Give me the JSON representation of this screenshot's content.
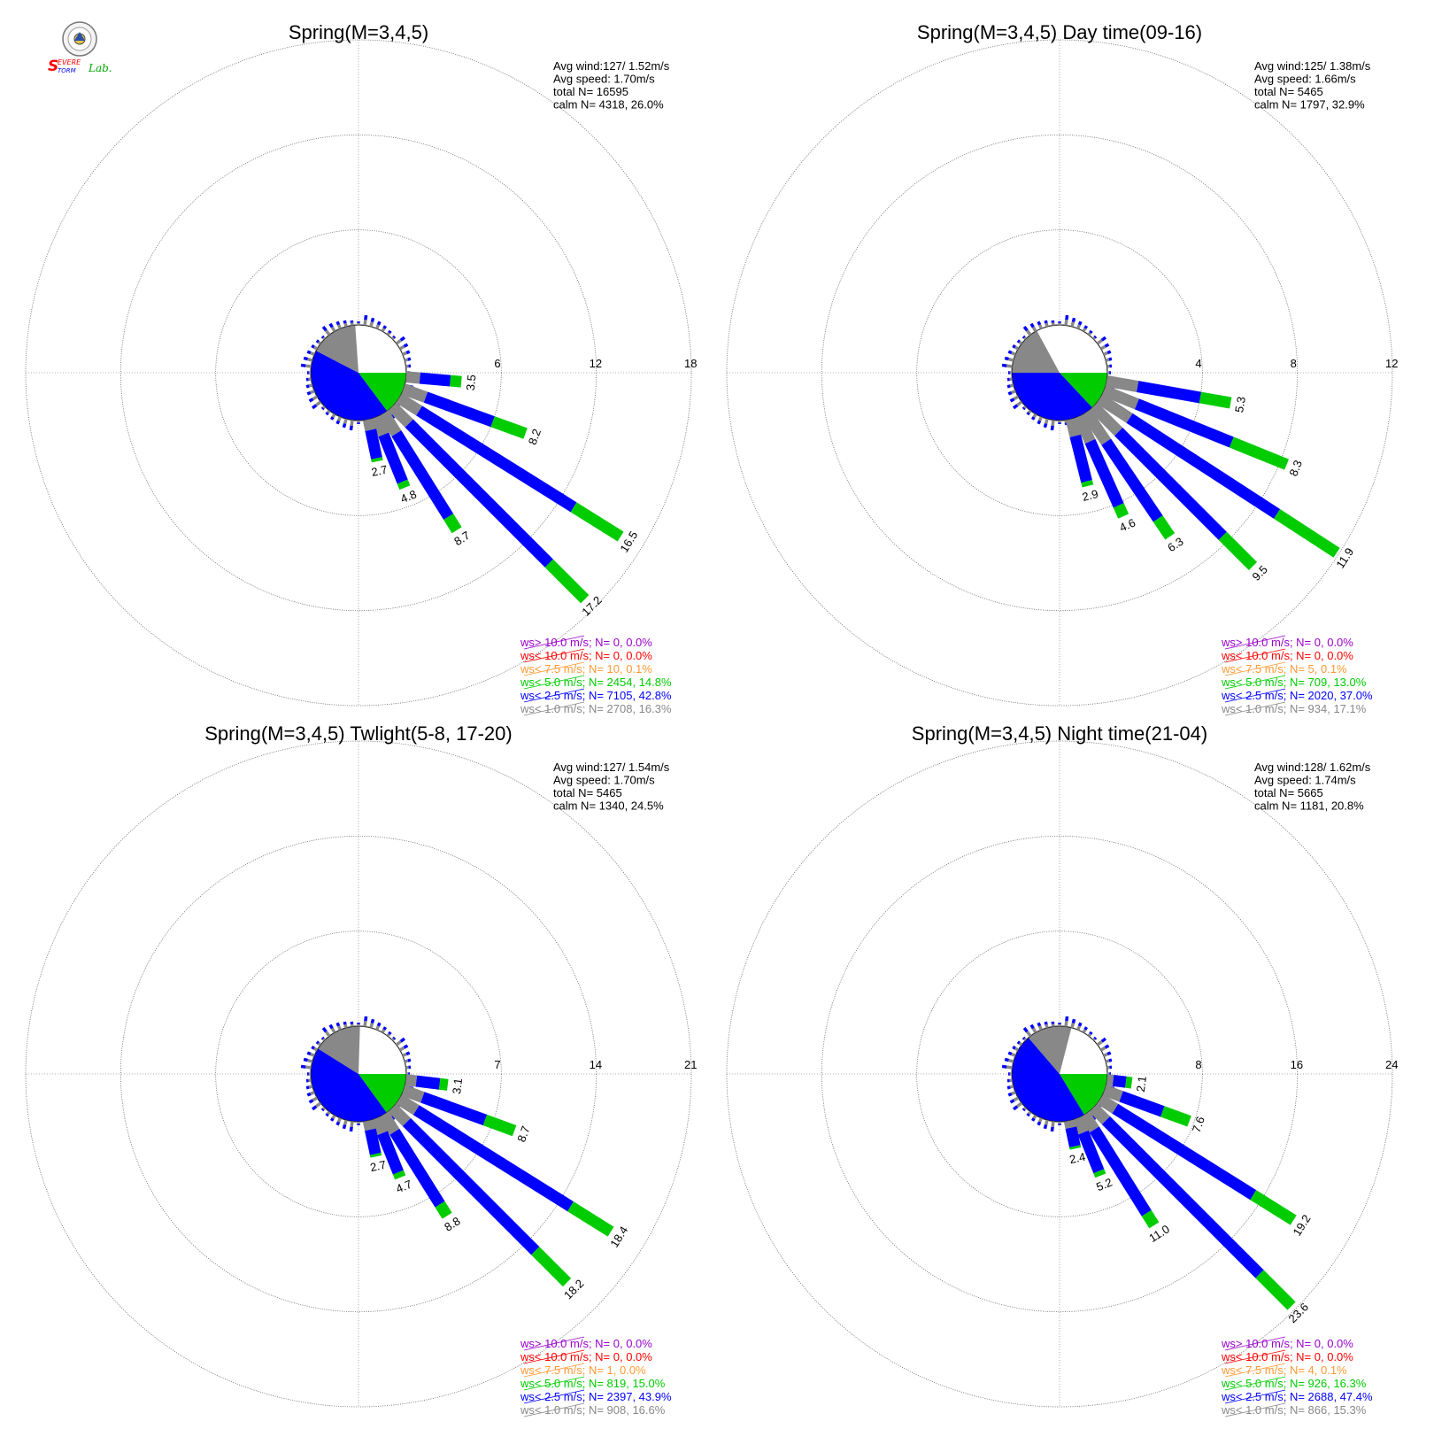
{
  "logo": {
    "text_s": "S",
    "text_evere": "EVERE",
    "text_torm": "TORM",
    "text_lab": "Lab.",
    "colors": [
      "#ff0000",
      "#0000ff",
      "#00aa00"
    ]
  },
  "legend_colors": {
    "gt10": "#9900cc",
    "lt10": "#ff0000",
    "lt75": "#ff9933",
    "lt5": "#00cc00",
    "lt25": "#0000ff",
    "lt1": "#888888"
  },
  "chart_data": [
    {
      "type": "wind-rose",
      "title": "Spring(M=3,4,5)",
      "stats": [
        "Avg wind:127/ 1.52m/s",
        "Avg speed: 1.70m/s",
        "total N=      16595",
        "calm N=   4318,  26.0%"
      ],
      "rings": [
        6,
        12,
        18
      ],
      "ring_labels": [
        "6",
        "12",
        "18"
      ],
      "calm_pie": {
        "gray": 0.163,
        "blue": 0.428,
        "green": 0.148
      },
      "petals": [
        {
          "dir": 95,
          "total": 3.5,
          "label": "3.5",
          "green": 0.7
        },
        {
          "dir": 110,
          "total": 8.2,
          "label": "8.2",
          "green": 2.2
        },
        {
          "dir": 122,
          "total": 16.5,
          "label": "16.5",
          "green": 3.5
        },
        {
          "dir": 135,
          "total": 17.2,
          "label": "17.2",
          "green": 3.2
        },
        {
          "dir": 148,
          "total": 8.7,
          "label": "8.7",
          "green": 1.0
        },
        {
          "dir": 158,
          "total": 4.8,
          "label": "4.8",
          "green": 0.4
        },
        {
          "dir": 168,
          "total": 2.7,
          "label": "2.7",
          "green": 0.2
        }
      ],
      "legend": [
        {
          "key": "gt10",
          "text": "ws> 10.0 m/s; N=     0,  0.0%"
        },
        {
          "key": "lt10",
          "text": "ws< 10.0 m/s; N=     0,  0.0%"
        },
        {
          "key": "lt75",
          "text": "ws<  7.5 m/s; N=    10,  0.1%"
        },
        {
          "key": "lt5",
          "text": "ws<  5.0 m/s; N=  2454, 14.8%"
        },
        {
          "key": "lt25",
          "text": "ws<  2.5 m/s; N=  7105, 42.8%"
        },
        {
          "key": "lt1",
          "text": "ws<  1.0 m/s; N=  2708, 16.3%"
        }
      ]
    },
    {
      "type": "wind-rose",
      "title": "Spring(M=3,4,5) Day time(09-16)",
      "stats": [
        "Avg wind:125/ 1.38m/s",
        "Avg speed: 1.66m/s",
        "total N=       5465",
        "calm N=   1797,  32.9%"
      ],
      "rings": [
        4,
        8,
        12
      ],
      "ring_labels": [
        "4",
        "8",
        "12"
      ],
      "calm_pie": {
        "gray": 0.171,
        "blue": 0.37,
        "green": 0.13
      },
      "petals": [
        {
          "dir": 100,
          "total": 5.3,
          "label": "5.3",
          "green": 1.3
        },
        {
          "dir": 112,
          "total": 8.3,
          "label": "8.3",
          "green": 2.5
        },
        {
          "dir": 123,
          "total": 11.9,
          "label": "11.9",
          "green": 3.0
        },
        {
          "dir": 135,
          "total": 9.5,
          "label": "9.5",
          "green": 1.8
        },
        {
          "dir": 146,
          "total": 6.3,
          "label": "6.3",
          "green": 0.9
        },
        {
          "dir": 156,
          "total": 4.6,
          "label": "4.6",
          "green": 0.5
        },
        {
          "dir": 166,
          "total": 2.9,
          "label": "2.9",
          "green": 0.2
        }
      ],
      "legend": [
        {
          "key": "gt10",
          "text": "ws> 10.0 m/s; N=     0,  0.0%"
        },
        {
          "key": "lt10",
          "text": "ws< 10.0 m/s; N=     0,  0.0%"
        },
        {
          "key": "lt75",
          "text": "ws<  7.5 m/s; N=     5,  0.1%"
        },
        {
          "key": "lt5",
          "text": "ws<  5.0 m/s; N=   709, 13.0%"
        },
        {
          "key": "lt25",
          "text": "ws<  2.5 m/s; N=  2020, 37.0%"
        },
        {
          "key": "lt1",
          "text": "ws<  1.0 m/s; N=   934, 17.1%"
        }
      ]
    },
    {
      "type": "wind-rose",
      "title": "Spring(M=3,4,5) Twlight(5-8, 17-20)",
      "stats": [
        "Avg wind:127/ 1.54m/s",
        "Avg speed: 1.70m/s",
        "total N=       5465",
        "calm N=   1340,  24.5%"
      ],
      "rings": [
        7,
        14,
        21
      ],
      "ring_labels": [
        "7",
        "14",
        "21"
      ],
      "calm_pie": {
        "gray": 0.166,
        "blue": 0.439,
        "green": 0.15
      },
      "petals": [
        {
          "dir": 97,
          "total": 3.1,
          "label": "3.1",
          "green": 0.6
        },
        {
          "dir": 110,
          "total": 8.7,
          "label": "8.7",
          "green": 2.3
        },
        {
          "dir": 122,
          "total": 18.4,
          "label": "18.4",
          "green": 3.5
        },
        {
          "dir": 135,
          "total": 18.2,
          "label": "18.2",
          "green": 3.3
        },
        {
          "dir": 148,
          "total": 8.8,
          "label": "8.8",
          "green": 1.0
        },
        {
          "dir": 158,
          "total": 4.7,
          "label": "4.7",
          "green": 0.4
        },
        {
          "dir": 168,
          "total": 2.7,
          "label": "2.7",
          "green": 0.2
        }
      ],
      "legend": [
        {
          "key": "gt10",
          "text": "ws> 10.0 m/s; N=     0,  0.0%"
        },
        {
          "key": "lt10",
          "text": "ws< 10.0 m/s; N=     0,  0.0%"
        },
        {
          "key": "lt75",
          "text": "ws<  7.5 m/s; N=     1,  0.0%"
        },
        {
          "key": "lt5",
          "text": "ws<  5.0 m/s; N=   819, 15.0%"
        },
        {
          "key": "lt25",
          "text": "ws<  2.5 m/s; N=  2397, 43.9%"
        },
        {
          "key": "lt1",
          "text": "ws<  1.0 m/s; N=   908, 16.6%"
        }
      ]
    },
    {
      "type": "wind-rose",
      "title": "Spring(M=3,4,5) Night time(21-04)",
      "stats": [
        "Avg wind:128/ 1.62m/s",
        "Avg speed: 1.74m/s",
        "total N=       5665",
        "calm N=   1181,  20.8%"
      ],
      "rings": [
        8,
        16,
        24
      ],
      "ring_labels": [
        "8",
        "16",
        "24"
      ],
      "calm_pie": {
        "gray": 0.153,
        "blue": 0.474,
        "green": 0.163
      },
      "petals": [
        {
          "dir": 97,
          "total": 2.1,
          "label": "2.1",
          "green": 0.5
        },
        {
          "dir": 110,
          "total": 7.6,
          "label": "7.6",
          "green": 2.4
        },
        {
          "dir": 122,
          "total": 19.2,
          "label": "19.2",
          "green": 4.0
        },
        {
          "dir": 135,
          "total": 23.6,
          "label": "23.6",
          "green": 3.8
        },
        {
          "dir": 148,
          "total": 11.0,
          "label": "11.0",
          "green": 1.2
        },
        {
          "dir": 158,
          "total": 5.2,
          "label": "5.2",
          "green": 0.4
        },
        {
          "dir": 168,
          "total": 2.4,
          "label": "2.4",
          "green": 0.2
        }
      ],
      "legend": [
        {
          "key": "gt10",
          "text": "ws> 10.0 m/s; N=     0,  0.0%"
        },
        {
          "key": "lt10",
          "text": "ws< 10.0 m/s; N=     0,  0.0%"
        },
        {
          "key": "lt75",
          "text": "ws<  7.5 m/s; N=     4,  0.1%"
        },
        {
          "key": "lt5",
          "text": "ws<  5.0 m/s; N=   926, 16.3%"
        },
        {
          "key": "lt25",
          "text": "ws<  2.5 m/s; N=  2688, 47.4%"
        },
        {
          "key": "lt1",
          "text": "ws<  1.0 m/s; N=   866, 15.3%"
        }
      ]
    }
  ]
}
